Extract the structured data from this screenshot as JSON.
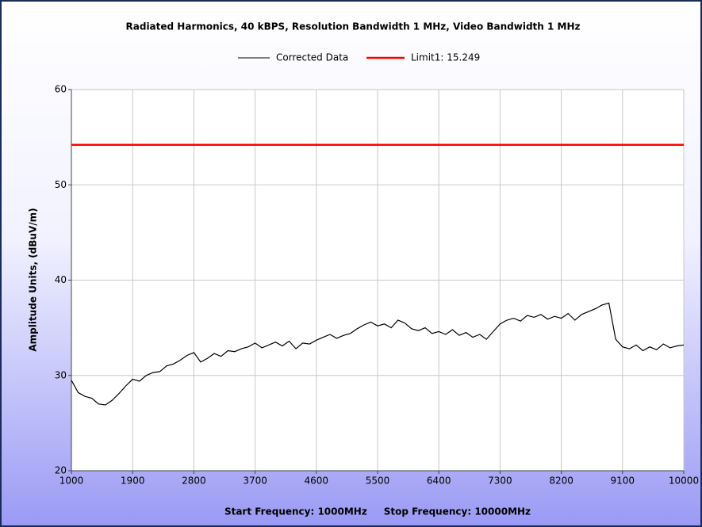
{
  "chart_data": {
    "type": "line",
    "title": "Radiated Harmonics, 40 kBPS, Resolution Bandwidth 1 MHz, Video Bandwidth 1 MHz",
    "xlabel": "Start Frequency: 1000MHz     Stop Frequency: 10000MHz",
    "ylabel": "Amplitude Units, (dBuV/m)",
    "xlim": [
      1000,
      10000
    ],
    "ylim": [
      20,
      60
    ],
    "xticks": [
      1000,
      1900,
      2800,
      3700,
      4600,
      5500,
      6400,
      7300,
      8200,
      9100,
      10000
    ],
    "yticks": [
      20,
      30,
      40,
      50,
      60
    ],
    "grid": true,
    "legend": "top",
    "series": [
      {
        "name": "Corrected Data",
        "color": "#000000",
        "x": [
          1000,
          1100,
          1200,
          1300,
          1400,
          1500,
          1600,
          1700,
          1800,
          1900,
          2000,
          2100,
          2200,
          2300,
          2400,
          2500,
          2600,
          2700,
          2800,
          2900,
          3000,
          3100,
          3200,
          3300,
          3400,
          3500,
          3600,
          3700,
          3800,
          3900,
          4000,
          4100,
          4200,
          4300,
          4400,
          4500,
          4600,
          4700,
          4800,
          4900,
          5000,
          5100,
          5200,
          5300,
          5400,
          5500,
          5600,
          5700,
          5800,
          5900,
          6000,
          6100,
          6200,
          6300,
          6400,
          6500,
          6600,
          6700,
          6800,
          6900,
          7000,
          7100,
          7200,
          7300,
          7400,
          7500,
          7600,
          7700,
          7800,
          7900,
          8000,
          8100,
          8200,
          8300,
          8400,
          8500,
          8600,
          8700,
          8800,
          8900,
          9000,
          9100,
          9200,
          9300,
          9400,
          9500,
          9600,
          9700,
          9800,
          9900,
          10000
        ],
        "values": [
          29.5,
          28.2,
          27.8,
          27.6,
          27.0,
          26.9,
          27.4,
          28.1,
          28.9,
          29.6,
          29.4,
          30.0,
          30.3,
          30.4,
          31.0,
          31.2,
          31.6,
          32.1,
          32.4,
          31.4,
          31.8,
          32.3,
          32.0,
          32.6,
          32.5,
          32.8,
          33.0,
          33.4,
          32.9,
          33.2,
          33.5,
          33.1,
          33.6,
          32.8,
          33.4,
          33.3,
          33.7,
          34.0,
          34.3,
          33.9,
          34.2,
          34.4,
          34.9,
          35.3,
          35.6,
          35.2,
          35.4,
          35.0,
          35.8,
          35.5,
          34.9,
          34.7,
          35.0,
          34.4,
          34.6,
          34.3,
          34.8,
          34.2,
          34.5,
          34.0,
          34.3,
          33.8,
          34.6,
          35.4,
          35.8,
          36.0,
          35.7,
          36.3,
          36.1,
          36.4,
          35.9,
          36.2,
          36.0,
          36.5,
          35.8,
          36.4,
          36.7,
          37.0,
          37.4,
          37.6,
          33.8,
          33.0,
          32.8,
          33.2,
          32.6,
          33.0,
          32.7,
          33.3,
          32.9,
          33.1,
          33.2
        ]
      },
      {
        "name": "Limit1: 15.249",
        "color": "#ff0000",
        "x": [
          1000,
          10000
        ],
        "values": [
          54.2,
          54.2
        ]
      }
    ]
  }
}
